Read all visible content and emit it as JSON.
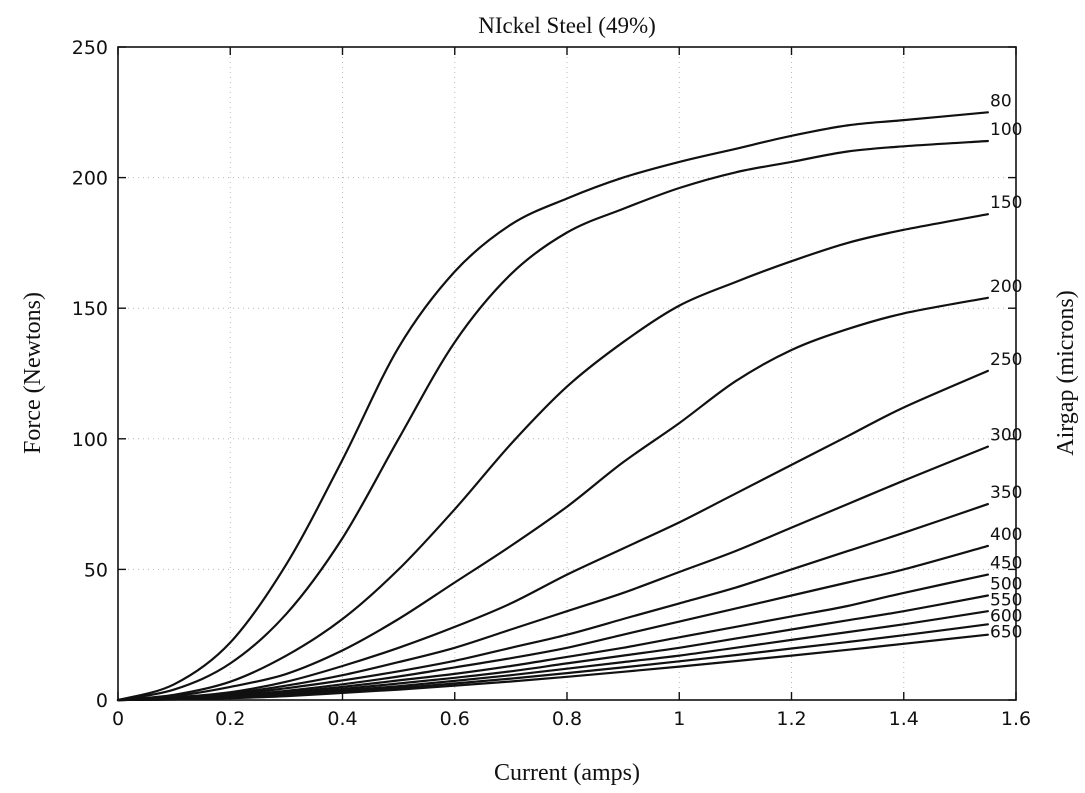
{
  "chart_data": {
    "type": "line",
    "title": "NIckel Steel (49%)",
    "xlabel": "Current (amps)",
    "ylabel": "Force (Newtons)",
    "y2label": "Airgap (microns)",
    "xlim": [
      0,
      1.6
    ],
    "ylim": [
      0,
      250
    ],
    "xticks": [
      "0",
      "0.2",
      "0.4",
      "0.6",
      "0.8",
      "1",
      "1.2",
      "1.4",
      "1.6"
    ],
    "yticks": [
      "0",
      "50",
      "100",
      "150",
      "200",
      "250"
    ],
    "grid": true,
    "x": [
      0,
      0.1,
      0.2,
      0.3,
      0.4,
      0.5,
      0.6,
      0.7,
      0.8,
      0.9,
      1.0,
      1.1,
      1.2,
      1.3,
      1.4,
      1.55
    ],
    "series": [
      {
        "name": "80",
        "values": [
          0,
          6,
          22,
          52,
          92,
          135,
          164,
          182,
          192,
          200,
          206,
          211,
          216,
          220,
          222,
          225
        ]
      },
      {
        "name": "100",
        "values": [
          0,
          4,
          14,
          33,
          62,
          100,
          137,
          163,
          179,
          188,
          196,
          202,
          206,
          210,
          212,
          214
        ]
      },
      {
        "name": "150",
        "values": [
          0,
          2,
          7,
          17,
          31,
          50,
          73,
          98,
          120,
          137,
          151,
          160,
          168,
          175,
          180,
          186
        ]
      },
      {
        "name": "200",
        "values": [
          0,
          1.5,
          5,
          10,
          19,
          31,
          45,
          59,
          74,
          91,
          106,
          122,
          134,
          142,
          148,
          154
        ]
      },
      {
        "name": "250",
        "values": [
          0,
          1,
          3,
          7,
          13,
          20,
          28,
          37,
          48,
          58,
          68,
          79,
          90,
          101,
          112,
          126
        ]
      },
      {
        "name": "300",
        "values": [
          0,
          0.8,
          2.5,
          5.5,
          9.5,
          14.5,
          20,
          27,
          34,
          41,
          49,
          57,
          66,
          75,
          84,
          97
        ]
      },
      {
        "name": "350",
        "values": [
          0,
          0.6,
          2,
          4.5,
          7.5,
          11,
          15,
          20,
          25,
          31,
          37,
          43,
          50,
          57,
          64,
          75
        ]
      },
      {
        "name": "400",
        "values": [
          0,
          0.5,
          1.6,
          3.5,
          6,
          9,
          12.5,
          16,
          20,
          25,
          30,
          35,
          40,
          45,
          50,
          59
        ]
      },
      {
        "name": "450",
        "values": [
          0,
          0.4,
          1.3,
          2.9,
          5,
          7.5,
          10,
          13,
          16.5,
          20,
          24,
          28,
          32,
          36,
          41,
          48
        ]
      },
      {
        "name": "500",
        "values": [
          0,
          0.35,
          1.1,
          2.4,
          4.2,
          6.3,
          8.5,
          11,
          14,
          17,
          20,
          23.5,
          27,
          30.5,
          34,
          40
        ]
      },
      {
        "name": "550",
        "values": [
          0,
          0.3,
          0.95,
          2,
          3.6,
          5.3,
          7.3,
          9.5,
          12,
          14.5,
          17,
          20,
          23,
          26,
          29,
          34
        ]
      },
      {
        "name": "600",
        "values": [
          0,
          0.25,
          0.8,
          1.7,
          3.1,
          4.6,
          6.3,
          8.2,
          10.3,
          12.5,
          14.8,
          17.2,
          19.7,
          22.2,
          24.8,
          29
        ]
      },
      {
        "name": "650",
        "values": [
          0,
          0.2,
          0.7,
          1.5,
          2.7,
          4,
          5.5,
          7.1,
          8.9,
          10.8,
          12.8,
          14.9,
          17,
          19.2,
          21.5,
          25
        ]
      }
    ]
  }
}
